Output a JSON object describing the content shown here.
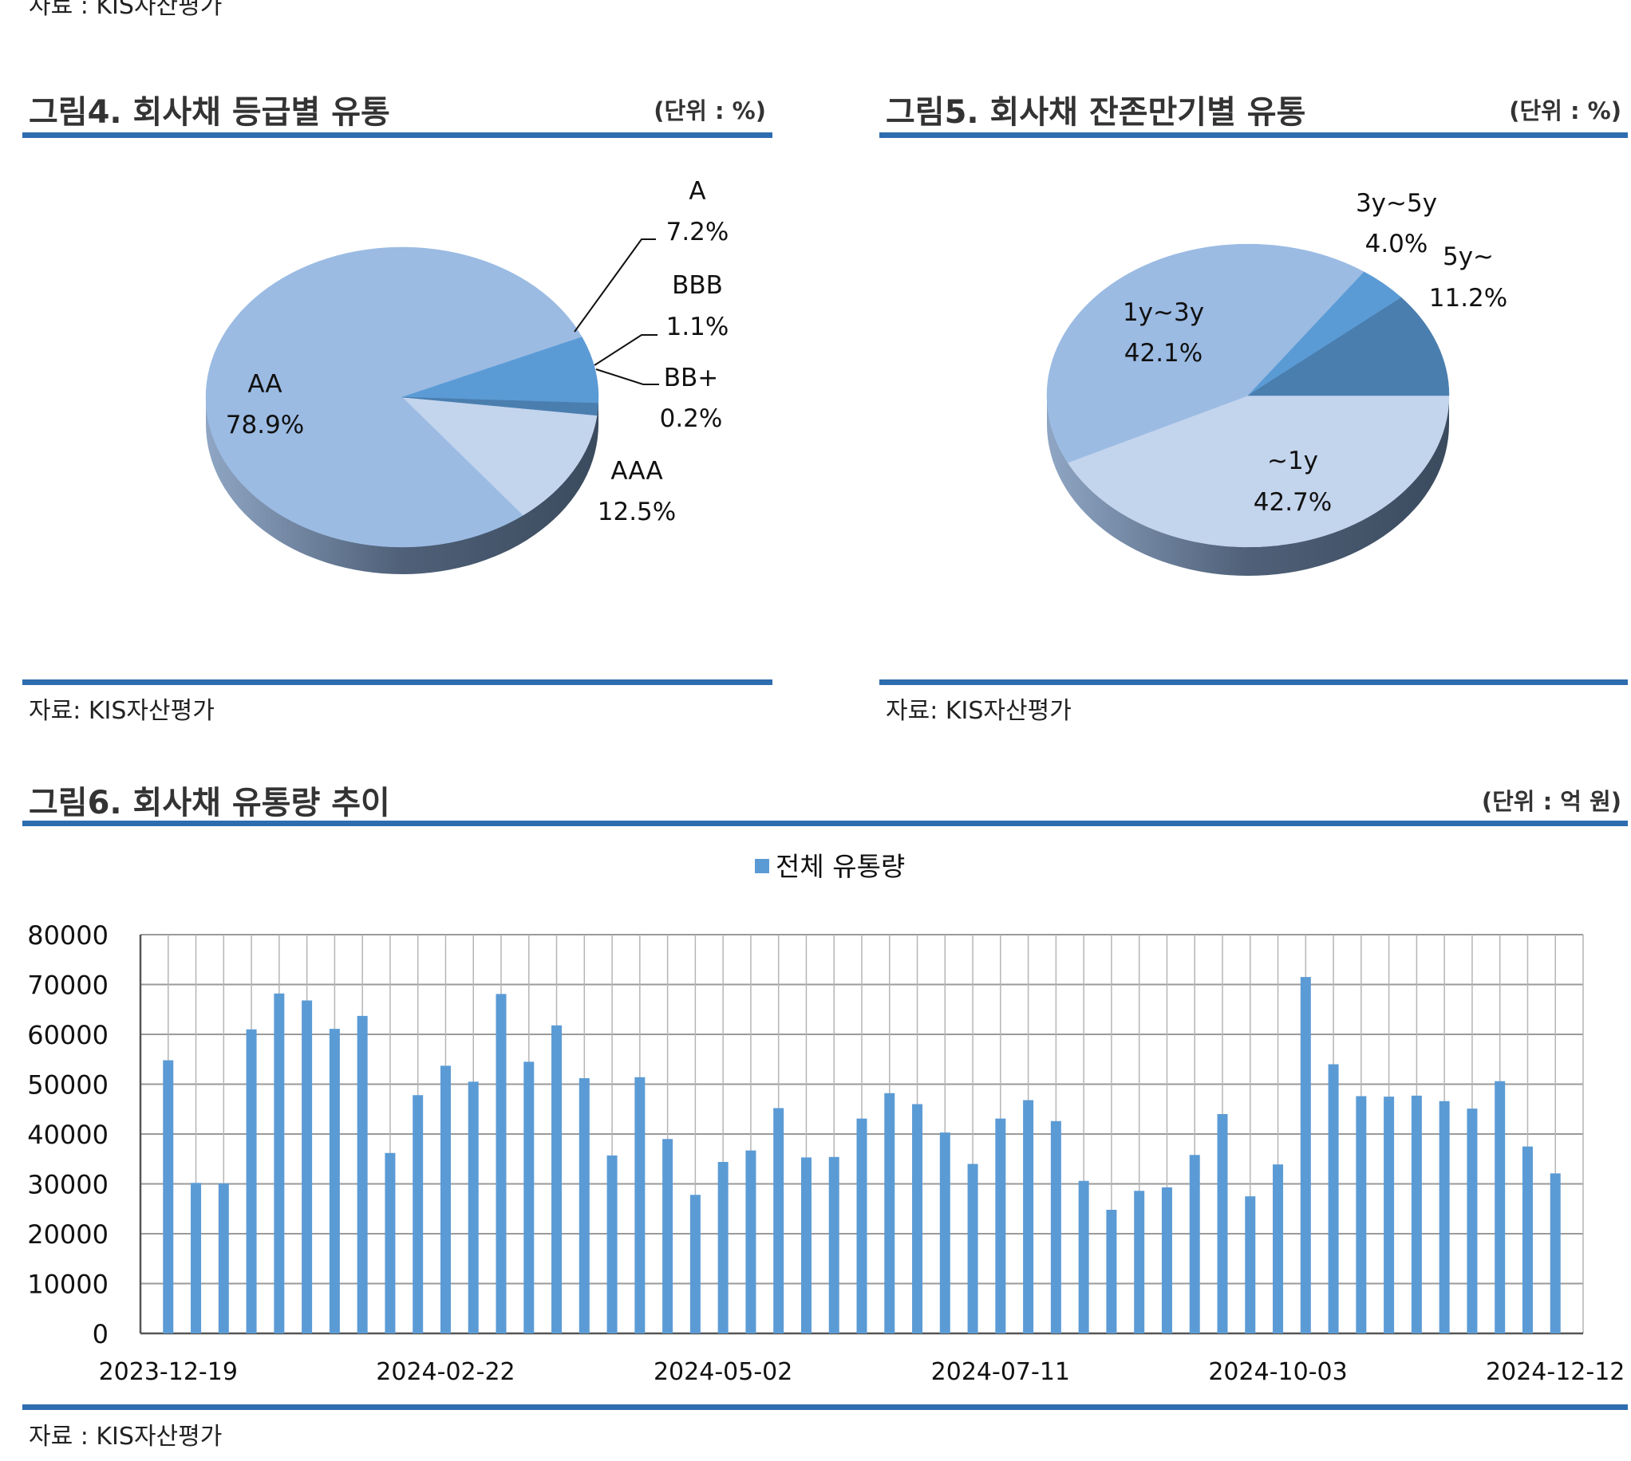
{
  "top_source": "자료 : KIS자산평가",
  "figures": [
    {
      "title": "그림4. 회사채 등급별 유통",
      "unit": "(단위 : %)",
      "source": "자료: KIS자산평가"
    },
    {
      "title": "그림5. 회사채 잔존만기별 유통",
      "unit": "(단위 : %)",
      "source": "자료: KIS자산평가"
    },
    {
      "title": "그림6. 회사채 유통량 추이",
      "unit": "(단위 : 억 원)",
      "source": "자료 : KIS자산평가"
    }
  ],
  "colors": {
    "rule": "#2e6cb0",
    "bar": "#5b9bd5",
    "slice_light": "#c3d4ed",
    "slice_main": "#9bbbe3",
    "slice_mid": "#5b9bd5",
    "slice_dark": "#4a7eaf",
    "side_dark": "#3b4b5e"
  },
  "chart_data": [
    {
      "type": "pie",
      "title": "",
      "slices": [
        {
          "label": "AAA",
          "value": 12.5,
          "display": "12.5%"
        },
        {
          "label": "AA",
          "value": 78.9,
          "display": "78.9%"
        },
        {
          "label": "A",
          "value": 7.2,
          "display": "7.2%"
        },
        {
          "label": "BBB",
          "value": 1.1,
          "display": "1.1%"
        },
        {
          "label": "BB+",
          "value": 0.2,
          "display": "0.2%"
        }
      ]
    },
    {
      "type": "pie",
      "title": "",
      "slices": [
        {
          "label": "~1y",
          "value": 42.7,
          "display": "42.7%"
        },
        {
          "label": "1y~3y",
          "value": 42.1,
          "display": "42.1%"
        },
        {
          "label": "3y~5y",
          "value": 4.0,
          "display": "4.0%"
        },
        {
          "label": "5y~",
          "value": 11.2,
          "display": "11.2%"
        }
      ]
    },
    {
      "type": "bar",
      "title": "",
      "legend": "전체 유통량",
      "legend_position": "top-center",
      "ylim": [
        0,
        80000
      ],
      "yticks": [
        0,
        10000,
        20000,
        30000,
        40000,
        50000,
        60000,
        70000,
        80000
      ],
      "x_tick_labels": [
        "2023-12-19",
        "2024-02-22",
        "2024-05-02",
        "2024-07-11",
        "2024-10-03",
        "2024-12-12"
      ],
      "grid": true,
      "values": [
        54800,
        30200,
        30100,
        61000,
        68200,
        66800,
        61100,
        63700,
        36200,
        47800,
        53700,
        50500,
        68100,
        54500,
        61800,
        51200,
        35700,
        51400,
        39000,
        27800,
        34400,
        36700,
        45200,
        35300,
        35400,
        43100,
        48200,
        46000,
        40300,
        34000,
        43100,
        46800,
        42600,
        30600,
        24800,
        28600,
        29300,
        35800,
        44000,
        27500,
        33900,
        71500,
        54000,
        47600,
        47500,
        47700,
        46600,
        45100,
        50600,
        37500,
        32100
      ]
    }
  ]
}
